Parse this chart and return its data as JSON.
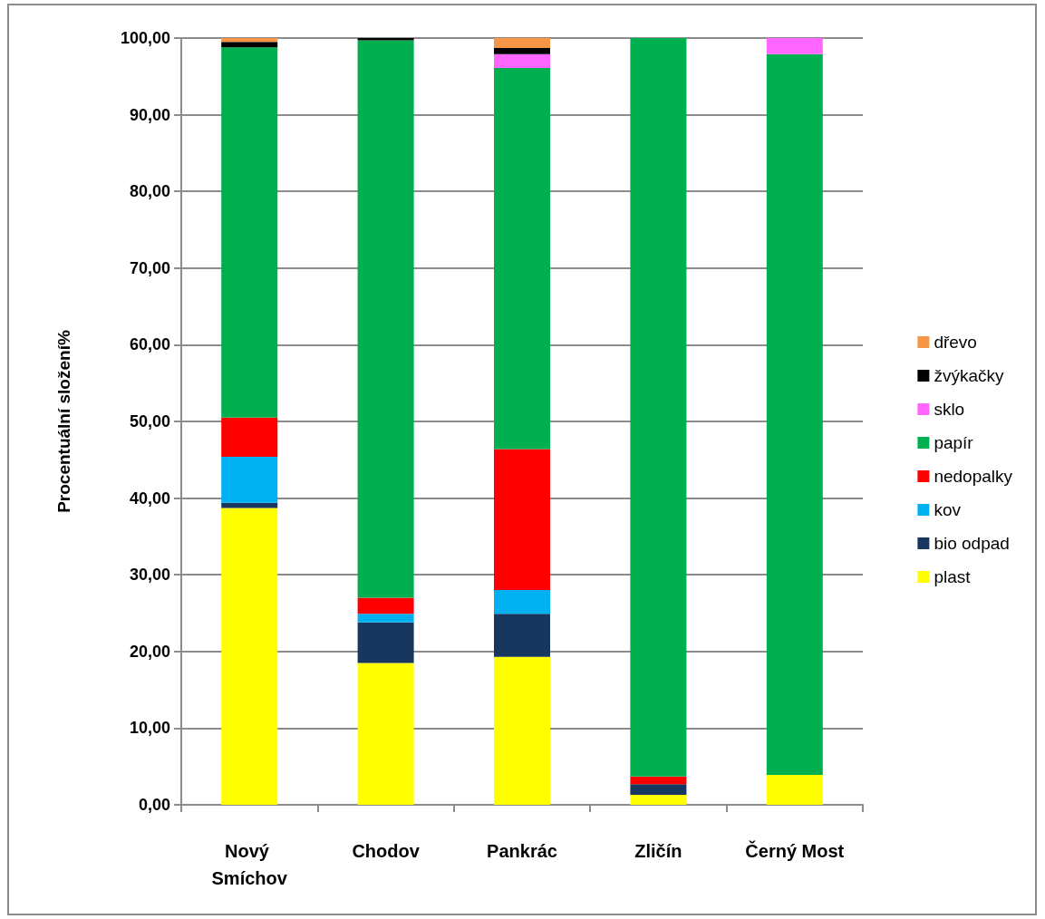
{
  "chart_data": {
    "type": "bar",
    "stacked": true,
    "ylabel": "Procentuální složení%",
    "categories": [
      "Nový Smíchov",
      "Chodov",
      "Pankrác",
      "Zličín",
      "Černý Most"
    ],
    "series": [
      {
        "name": "plast",
        "color": "#ffff00",
        "values": [
          38.7,
          18.5,
          19.3,
          1.3,
          3.9
        ]
      },
      {
        "name": "bio odpad",
        "color": "#17375e",
        "values": [
          0.7,
          5.3,
          5.6,
          1.4,
          null
        ]
      },
      {
        "name": "kov",
        "color": "#00b0f0",
        "values": [
          6.0,
          1.1,
          3.1,
          null,
          null
        ]
      },
      {
        "name": "nedopalky",
        "color": "#ff0000",
        "values": [
          5.1,
          2.1,
          18.4,
          1.0,
          null
        ]
      },
      {
        "name": "papír",
        "color": "#00b050",
        "values": [
          48.3,
          72.7,
          49.7,
          96.3,
          94.0
        ]
      },
      {
        "name": "sklo",
        "color": "#ff66ff",
        "values": [
          null,
          null,
          1.8,
          null,
          2.1
        ]
      },
      {
        "name": "žvýkačky",
        "color": "#000000",
        "values": [
          0.7,
          0.3,
          0.8,
          null,
          null
        ]
      },
      {
        "name": "dřevo",
        "color": "#f79646",
        "values": [
          0.5,
          null,
          1.3,
          null,
          null
        ]
      }
    ],
    "ylim": [
      0,
      100
    ],
    "yticks": [
      {
        "value": 0,
        "label": "0,00"
      },
      {
        "value": 10,
        "label": "10,00"
      },
      {
        "value": 20,
        "label": "20,00"
      },
      {
        "value": 30,
        "label": "30,00"
      },
      {
        "value": 40,
        "label": "40,00"
      },
      {
        "value": 50,
        "label": "50,00"
      },
      {
        "value": 60,
        "label": "60,00"
      },
      {
        "value": 70,
        "label": "70,00"
      },
      {
        "value": 80,
        "label": "80,00"
      },
      {
        "value": 90,
        "label": "90,00"
      },
      {
        "value": 100,
        "label": "100,00"
      }
    ],
    "grid": "y",
    "legend": "right"
  }
}
